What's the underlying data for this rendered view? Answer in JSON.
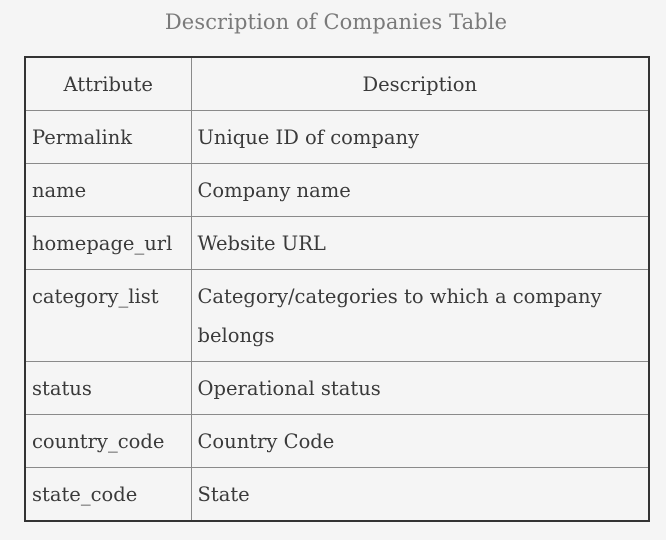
{
  "caption": "Description of Companies Table",
  "table": {
    "headers": [
      "Attribute",
      "Description"
    ],
    "rows": [
      {
        "attribute": "Permalink",
        "description": "Unique ID of company"
      },
      {
        "attribute": "name",
        "description": "Company name"
      },
      {
        "attribute": "homepage_url",
        "description": "Website URL"
      },
      {
        "attribute": "category_list",
        "description": "Category/categories to which a company belongs"
      },
      {
        "attribute": "status",
        "description": "Operational status"
      },
      {
        "attribute": "country_code",
        "description": "Country Code"
      },
      {
        "attribute": "state_code",
        "description": "State"
      }
    ]
  }
}
